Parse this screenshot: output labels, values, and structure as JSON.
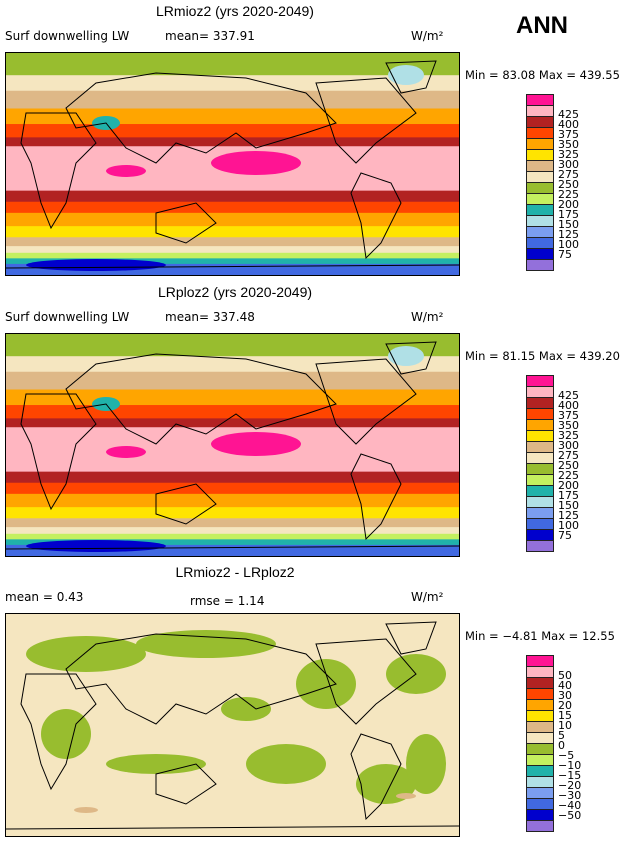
{
  "ann_label": "ANN",
  "panels": [
    {
      "title": "LRmioz2 (yrs 2020-2049)",
      "variable": "Surf downwelling LW",
      "stat1": "mean= 337.91",
      "stat2": "",
      "units": "W/m²",
      "minmax": "Min =  83.08  Max =  439.55",
      "kind": "abs"
    },
    {
      "title": "LRploz2 (yrs 2020-2049)",
      "variable": "Surf downwelling LW",
      "stat1": "mean= 337.48",
      "stat2": "",
      "units": "W/m²",
      "minmax": "Min =  81.15  Max =  439.20",
      "kind": "abs"
    },
    {
      "title": "LRmioz2 - LRploz2",
      "variable": "mean =   0.43",
      "stat1": "",
      "stat2": "rmse =   1.14",
      "units": "W/m²",
      "minmax": "Min =  −4.81  Max =  12.55",
      "kind": "diff"
    }
  ],
  "chart_data": {
    "type": "heatmap",
    "colorbar_colors": [
      "#FF1493",
      "#FFB6C1",
      "#B22222",
      "#FF4500",
      "#FFA500",
      "#FFE400",
      "#DEB887",
      "#F5E6C0",
      "#98BD2F",
      "#C4F060",
      "#20B2AA",
      "#B0E0E6",
      "#7B9EF0",
      "#4169E1",
      "#0000CD",
      "#9370DB"
    ],
    "levels_abs": [
      "425",
      "400",
      "375",
      "350",
      "325",
      "300",
      "275",
      "250",
      "225",
      "200",
      "175",
      "150",
      "125",
      "100",
      "75"
    ],
    "levels_diff": [
      "50",
      "40",
      "30",
      "20",
      "15",
      "10",
      "5",
      "0",
      "−5",
      "−10",
      "−15",
      "−20",
      "−30",
      "−40",
      "−50"
    ]
  }
}
